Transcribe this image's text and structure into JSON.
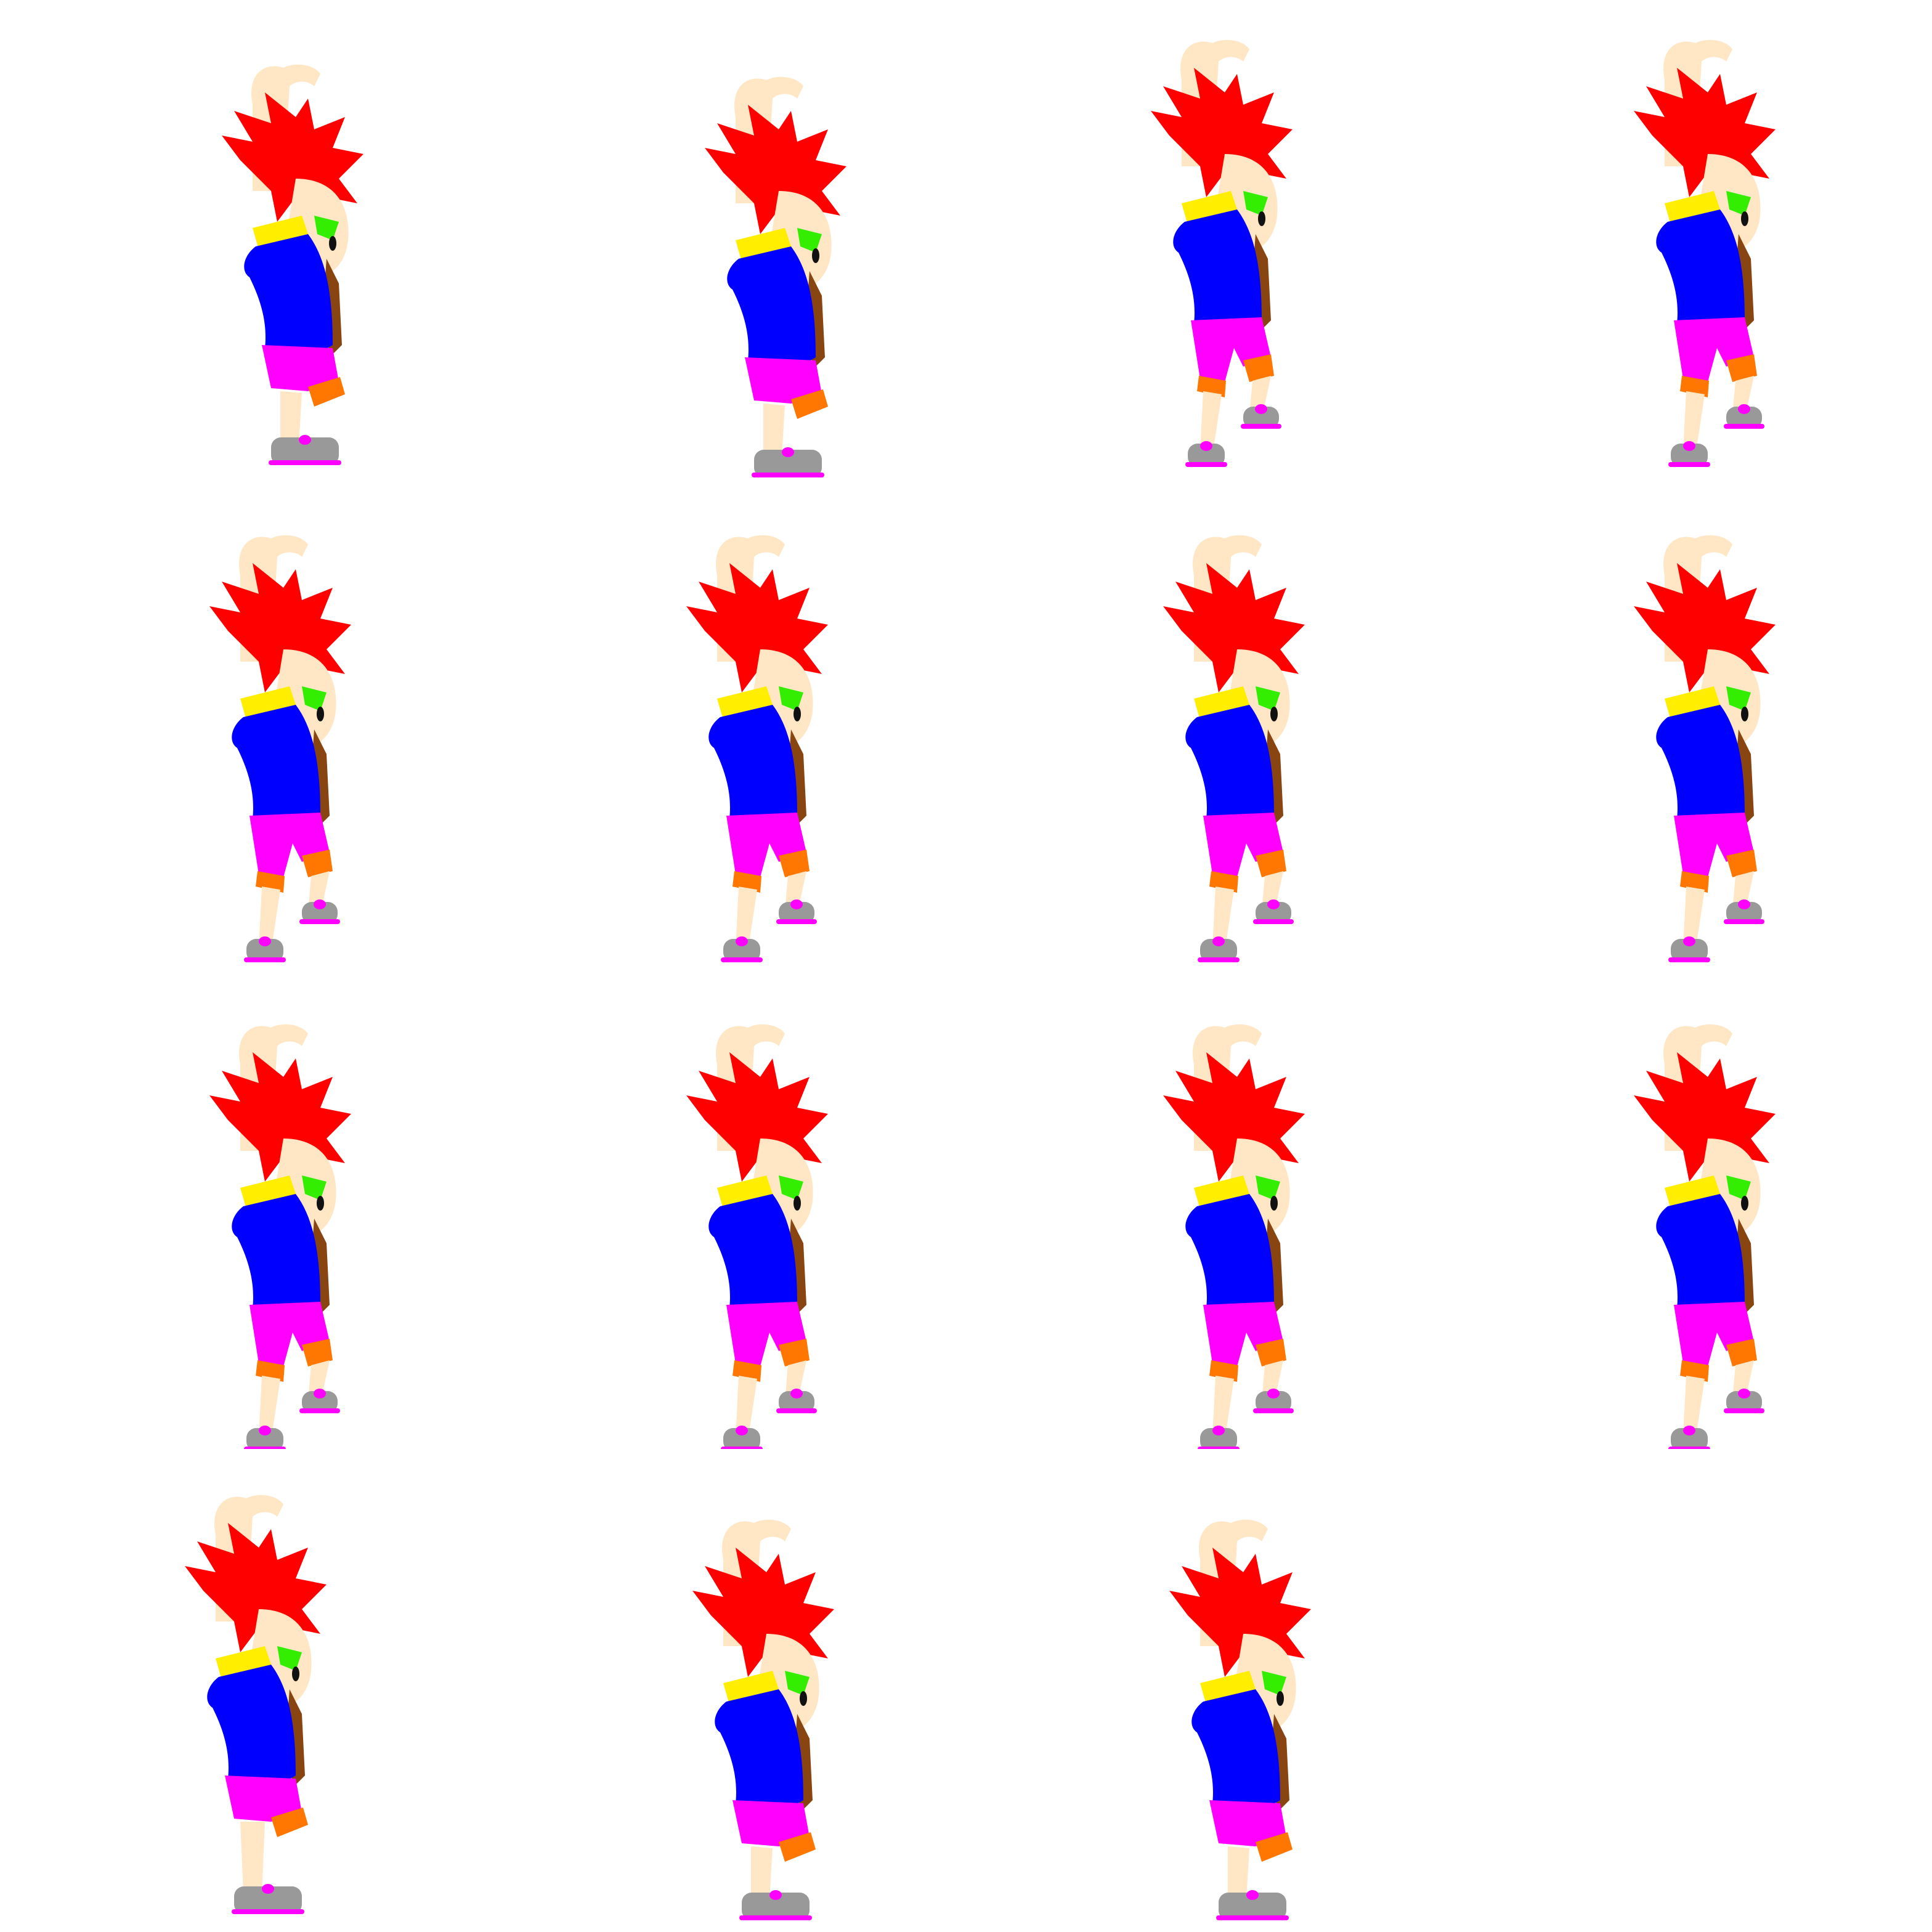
{
  "sheet": {
    "background": "#ffffff",
    "columns": 4,
    "rows": 4
  },
  "palette": {
    "skin": "#ffe6c4",
    "hair": "#ff0000",
    "shirt": "#0000ff",
    "collar": "#ffee00",
    "eye": "#33ee00",
    "pupil": "#111111",
    "shorts": "#ff00ff",
    "cuff": "#ff7700",
    "shoe": "#999999",
    "shoe_trim": "#ff00ff",
    "backpack_strap": "#884411",
    "highlight": "#00eeff"
  },
  "character": {
    "name": "red-haired-boy-sprite",
    "animation": "jump"
  },
  "frames": [
    {
      "pose": "crouch"
    },
    {
      "pose": "crouch"
    },
    {
      "pose": "jump-rise"
    },
    {
      "pose": "jump-rise"
    },
    {
      "pose": "jump-air"
    },
    {
      "pose": "jump-air"
    },
    {
      "pose": "jump-air"
    },
    {
      "pose": "jump-air"
    },
    {
      "pose": "jump-air"
    },
    {
      "pose": "jump-air"
    },
    {
      "pose": "jump-air"
    },
    {
      "pose": "jump-air"
    },
    {
      "pose": "land-stand"
    },
    {
      "pose": "crouch"
    },
    {
      "pose": "crouch"
    }
  ]
}
